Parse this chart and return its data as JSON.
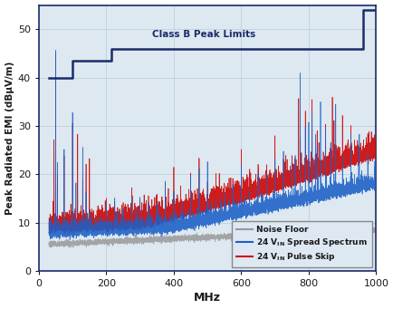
{
  "xlabel": "MHz",
  "ylabel": "Peak Radiated EMI (dBµV/m)",
  "xlim": [
    0,
    1000
  ],
  "ylim": [
    0,
    55
  ],
  "yticks": [
    0,
    10,
    20,
    30,
    40,
    50
  ],
  "xticks": [
    0,
    200,
    400,
    600,
    800,
    1000
  ],
  "grid_color": "#b8cce0",
  "background_color": "#dde8f0",
  "class_b_color": "#1a2b6b",
  "class_b_label": "Class B Peak Limits",
  "class_b_x": [
    30,
    100,
    100,
    216,
    216,
    960,
    960,
    1000
  ],
  "class_b_y": [
    40,
    40,
    43.5,
    43.5,
    46,
    46,
    54,
    54
  ],
  "noise_floor_color": "#999999",
  "spread_spectrum_color": "#1a60c8",
  "pulse_skip_color": "#cc1111",
  "fig_width": 4.35,
  "fig_height": 3.41,
  "dpi": 100,
  "border_color": "#1a2b6b"
}
